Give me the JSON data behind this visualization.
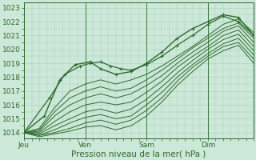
{
  "background_color": "#cce8d8",
  "plot_bg_color": "#cce8d8",
  "grid_major_color": "#aacfbe",
  "grid_minor_color": "#aacfbe",
  "line_color": "#2d6b2d",
  "xlabel": "Pression niveau de la mer( hPa )",
  "xlabel_fontsize": 7.5,
  "tick_fontsize": 6.5,
  "ylim": [
    1013.6,
    1023.4
  ],
  "yticks": [
    1014,
    1015,
    1016,
    1017,
    1018,
    1019,
    1020,
    1021,
    1022,
    1023
  ],
  "day_labels": [
    "Jeu",
    "Ven",
    "Sam",
    "Dim"
  ],
  "day_positions": [
    0,
    24,
    48,
    72
  ],
  "xlim": [
    0,
    90
  ],
  "total_hours": 90,
  "lines": [
    {
      "t": [
        0,
        8,
        14,
        20,
        26,
        30,
        36,
        42,
        48,
        54,
        60,
        66,
        72,
        78,
        84,
        90
      ],
      "v": [
        1014.0,
        1015.2,
        1017.8,
        1018.9,
        1019.1,
        1018.6,
        1018.2,
        1018.4,
        1019.0,
        1019.8,
        1020.8,
        1021.5,
        1022.0,
        1022.5,
        1022.3,
        1021.0
      ],
      "lw": 1.0,
      "marker": true
    },
    {
      "t": [
        0,
        6,
        12,
        18,
        24,
        30,
        36,
        42,
        48,
        54,
        60,
        66,
        72,
        78,
        84,
        90
      ],
      "v": [
        1014.0,
        1014.3,
        1015.8,
        1017.0,
        1017.5,
        1017.8,
        1017.5,
        1017.8,
        1018.2,
        1018.8,
        1019.5,
        1020.2,
        1021.0,
        1021.8,
        1022.2,
        1021.2
      ],
      "lw": 0.7,
      "marker": false
    },
    {
      "t": [
        0,
        6,
        12,
        18,
        24,
        30,
        36,
        42,
        48,
        54,
        60,
        66,
        72,
        78,
        84,
        90
      ],
      "v": [
        1014.0,
        1014.2,
        1015.5,
        1016.5,
        1017.0,
        1017.3,
        1017.0,
        1017.2,
        1017.8,
        1018.5,
        1019.3,
        1020.1,
        1020.8,
        1021.5,
        1021.9,
        1020.8
      ],
      "lw": 0.7,
      "marker": false
    },
    {
      "t": [
        0,
        6,
        12,
        18,
        24,
        30,
        36,
        42,
        48,
        54,
        60,
        66,
        72,
        78,
        84,
        90
      ],
      "v": [
        1014.0,
        1014.1,
        1015.2,
        1016.0,
        1016.5,
        1016.8,
        1016.5,
        1016.8,
        1017.4,
        1018.1,
        1019.0,
        1019.8,
        1020.5,
        1021.3,
        1021.7,
        1020.5
      ],
      "lw": 0.7,
      "marker": false
    },
    {
      "t": [
        0,
        6,
        12,
        18,
        24,
        30,
        36,
        42,
        48,
        54,
        60,
        66,
        72,
        78,
        84,
        90
      ],
      "v": [
        1014.0,
        1014.0,
        1014.8,
        1015.5,
        1016.0,
        1016.2,
        1016.0,
        1016.2,
        1016.9,
        1017.7,
        1018.7,
        1019.5,
        1020.2,
        1021.0,
        1021.4,
        1020.2
      ],
      "lw": 0.7,
      "marker": false
    },
    {
      "t": [
        0,
        6,
        12,
        18,
        24,
        30,
        36,
        42,
        48,
        54,
        60,
        66,
        72,
        78,
        84,
        90
      ],
      "v": [
        1014.0,
        1013.9,
        1014.5,
        1015.0,
        1015.5,
        1015.7,
        1015.4,
        1015.7,
        1016.4,
        1017.3,
        1018.3,
        1019.2,
        1020.0,
        1020.7,
        1021.1,
        1019.9
      ],
      "lw": 0.7,
      "marker": false
    },
    {
      "t": [
        0,
        6,
        12,
        18,
        24,
        30,
        36,
        42,
        48,
        54,
        60,
        66,
        72,
        78,
        84,
        90
      ],
      "v": [
        1014.0,
        1013.8,
        1014.2,
        1014.7,
        1015.1,
        1015.3,
        1015.0,
        1015.2,
        1016.0,
        1016.9,
        1018.0,
        1018.9,
        1019.7,
        1020.4,
        1020.8,
        1019.6
      ],
      "lw": 0.7,
      "marker": false
    },
    {
      "t": [
        0,
        6,
        12,
        18,
        24,
        30,
        36,
        42,
        48,
        54,
        60,
        66,
        72,
        78,
        84,
        90
      ],
      "v": [
        1014.0,
        1013.8,
        1014.0,
        1014.3,
        1014.7,
        1014.9,
        1014.6,
        1014.9,
        1015.6,
        1016.5,
        1017.7,
        1018.7,
        1019.5,
        1020.2,
        1020.5,
        1019.3
      ],
      "lw": 0.7,
      "marker": false
    },
    {
      "t": [
        0,
        6,
        12,
        18,
        24,
        30,
        36,
        42,
        48,
        54,
        60,
        66,
        72,
        78,
        84,
        90
      ],
      "v": [
        1014.0,
        1013.7,
        1013.9,
        1014.1,
        1014.4,
        1014.5,
        1014.2,
        1014.5,
        1015.2,
        1016.2,
        1017.4,
        1018.4,
        1019.3,
        1019.9,
        1020.3,
        1019.0
      ],
      "lw": 0.7,
      "marker": false
    },
    {
      "t": [
        0,
        10,
        16,
        22,
        26,
        30,
        34,
        38,
        42,
        48,
        54,
        60,
        66,
        72,
        78,
        84,
        90
      ],
      "v": [
        1014.0,
        1016.5,
        1018.2,
        1018.8,
        1019.0,
        1019.1,
        1018.8,
        1018.6,
        1018.5,
        1018.9,
        1019.5,
        1020.3,
        1021.0,
        1021.8,
        1022.4,
        1022.0,
        1021.0
      ],
      "lw": 0.9,
      "marker": true
    }
  ]
}
